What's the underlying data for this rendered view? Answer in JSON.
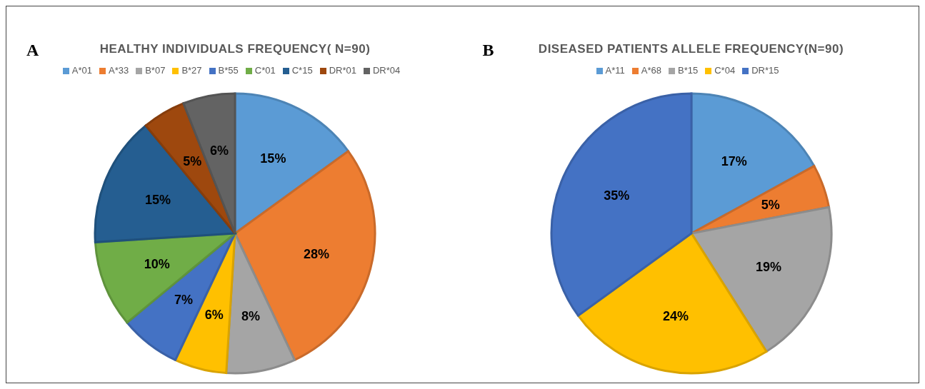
{
  "chart_data": [
    {
      "type": "pie",
      "title": "HEALTHY INDIVIDUALS FREQUENCY( N=90)",
      "annotations": [
        "A"
      ],
      "legend": "top",
      "categories": [
        "A*01",
        "A*33",
        "B*07",
        "B*27",
        "B*55",
        "C*01",
        "C*15",
        "DR*01",
        "DR*04"
      ],
      "values": [
        15,
        28,
        8,
        6,
        7,
        10,
        15,
        5,
        6
      ],
      "value_labels": [
        "15%",
        "28%",
        "8%",
        "6%",
        "7%",
        "10%",
        "15%",
        "5%",
        "6%"
      ],
      "colors": [
        "#5b9bd5",
        "#ed7d31",
        "#a5a5a5",
        "#ffc000",
        "#4472c4",
        "#70ad47",
        "#255e91",
        "#9e480e",
        "#636363"
      ]
    },
    {
      "type": "pie",
      "title": "DISEASED PATIENTS ALLELE FREQUENCY(N=90)",
      "annotations": [
        "B"
      ],
      "legend": "top",
      "categories": [
        "A*11",
        "A*68",
        "B*15",
        "C*04",
        "DR*15"
      ],
      "values": [
        17,
        5,
        19,
        24,
        35
      ],
      "value_labels": [
        "17%",
        "5%",
        "19%",
        "24%",
        "35%"
      ],
      "colors": [
        "#5b9bd5",
        "#ed7d31",
        "#a5a5a5",
        "#ffc000",
        "#4472c4"
      ]
    }
  ]
}
